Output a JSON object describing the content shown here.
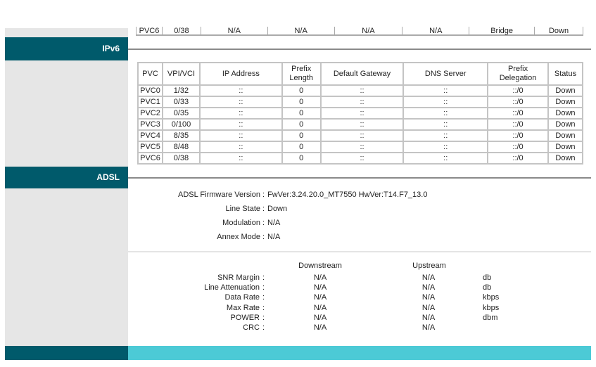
{
  "colors": {
    "header": "#005a6b",
    "footer_accent": "#4ccad6",
    "sidebar": "#e6e6e6"
  },
  "prev_table_row": [
    "PVC6",
    "0/38",
    "N/A",
    "N/A",
    "N/A",
    "N/A",
    "Bridge",
    "Down"
  ],
  "ipv6": {
    "title": "IPv6",
    "columns": [
      "PVC",
      "VPI/VCI",
      "IP Address",
      "Prefix Length",
      "Default Gateway",
      "DNS Server",
      "Prefix Delegation",
      "Status"
    ],
    "rows": [
      [
        "PVC0",
        "1/32",
        "::",
        "0",
        "::",
        "::",
        "::/0",
        "Down"
      ],
      [
        "PVC1",
        "0/33",
        "::",
        "0",
        "::",
        "::",
        "::/0",
        "Down"
      ],
      [
        "PVC2",
        "0/35",
        "::",
        "0",
        "::",
        "::",
        "::/0",
        "Down"
      ],
      [
        "PVC3",
        "0/100",
        "::",
        "0",
        "::",
        "::",
        "::/0",
        "Down"
      ],
      [
        "PVC4",
        "8/35",
        "::",
        "0",
        "::",
        "::",
        "::/0",
        "Down"
      ],
      [
        "PVC5",
        "8/48",
        "::",
        "0",
        "::",
        "::",
        "::/0",
        "Down"
      ],
      [
        "PVC6",
        "0/38",
        "::",
        "0",
        "::",
        "::",
        "::/0",
        "Down"
      ]
    ]
  },
  "adsl": {
    "title": "ADSL",
    "info": [
      {
        "label": "ADSL Firmware Version",
        "value": "FwVer:3.24.20.0_MT7550 HwVer:T14.F7_13.0"
      },
      {
        "label": "Line State",
        "value": "Down"
      },
      {
        "label": "Modulation",
        "value": "N/A"
      },
      {
        "label": "Annex Mode",
        "value": "N/A"
      }
    ],
    "stats_headers": {
      "downstream": "Downstream",
      "upstream": "Upstream"
    },
    "stats": [
      {
        "label": "SNR Margin",
        "down": "N/A",
        "up": "N/A",
        "unit": "db"
      },
      {
        "label": "Line Attenuation",
        "down": "N/A",
        "up": "N/A",
        "unit": "db"
      },
      {
        "label": "Data Rate",
        "down": "N/A",
        "up": "N/A",
        "unit": "kbps"
      },
      {
        "label": "Max Rate",
        "down": "N/A",
        "up": "N/A",
        "unit": "kbps"
      },
      {
        "label": "POWER",
        "down": "N/A",
        "up": "N/A",
        "unit": "dbm"
      },
      {
        "label": "CRC",
        "down": "N/A",
        "up": "N/A",
        "unit": ""
      }
    ]
  }
}
